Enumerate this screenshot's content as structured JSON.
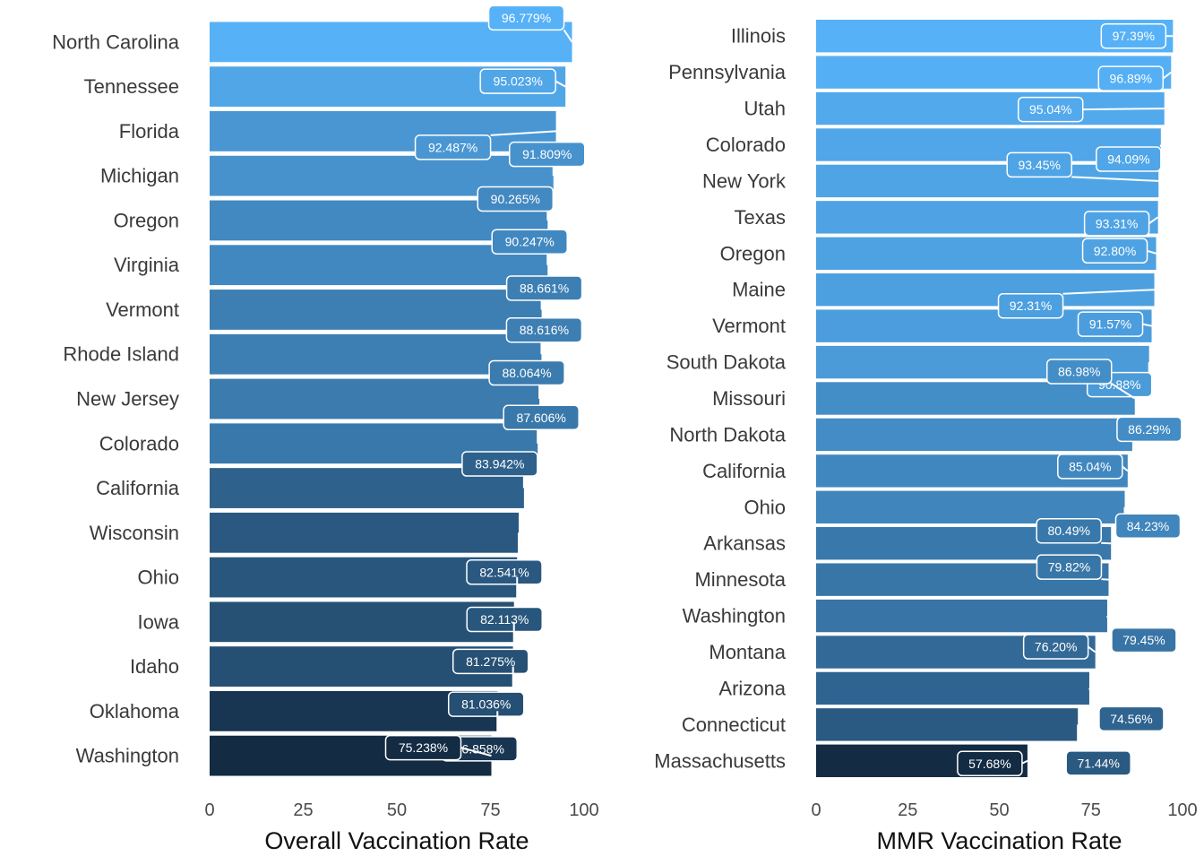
{
  "colors": {
    "low": "#132b43",
    "high": "#56b1f7",
    "label_border": "#ffffff",
    "background": "#ffffff"
  },
  "chart_data": [
    {
      "type": "bar",
      "orientation": "horizontal",
      "xlabel": "Overall Vaccination Rate",
      "xlim": [
        0,
        100
      ],
      "xticks": [
        0,
        25,
        50,
        75,
        100
      ],
      "grid": false,
      "categories": [
        "North Carolina",
        "Tennessee",
        "Florida",
        "Michigan",
        "Oregon",
        "Virginia",
        "Vermont",
        "Rhode Island",
        "New Jersey",
        "Colorado",
        "California",
        "Wisconsin",
        "Ohio",
        "Iowa",
        "Idaho",
        "Oklahoma",
        "Washington"
      ],
      "values": [
        96.779,
        95.023,
        92.487,
        91.809,
        90.265,
        90.247,
        88.661,
        88.616,
        88.064,
        87.606,
        83.942,
        82.541,
        82.113,
        81.275,
        81.036,
        76.858,
        75.238
      ],
      "data_labels": [
        "96.779%",
        "95.023%",
        "92.487%",
        "91.809%",
        "90.265%",
        "90.247%",
        "88.661%",
        "88.616%",
        "88.064%",
        "87.606%",
        "83.942%",
        "82.541%",
        "82.113%",
        "81.275%",
        "81.036%",
        "76.858%",
        "75.238%"
      ]
    },
    {
      "type": "bar",
      "orientation": "horizontal",
      "xlabel": "MMR Vaccination Rate",
      "xlim": [
        0,
        100
      ],
      "xticks": [
        0,
        25,
        50,
        75,
        100
      ],
      "grid": false,
      "categories": [
        "Illinois",
        "Pennsylvania",
        "Utah",
        "Colorado",
        "New York",
        "Texas",
        "Oregon",
        "Maine",
        "Vermont",
        "South Dakota",
        "Missouri",
        "North Dakota",
        "California",
        "Ohio",
        "Arkansas",
        "Minnesota",
        "Washington",
        "Montana",
        "Arizona",
        "Connecticut",
        "Massachusetts"
      ],
      "values": [
        97.39,
        96.89,
        95.04,
        94.09,
        93.45,
        93.31,
        92.8,
        92.31,
        91.57,
        90.88,
        86.98,
        86.29,
        85.04,
        84.23,
        80.49,
        79.82,
        79.45,
        76.2,
        74.56,
        71.44,
        57.68
      ],
      "data_labels": [
        "97.39%",
        "96.89%",
        "95.04%",
        "94.09%",
        "93.45%",
        "93.31%",
        "92.80%",
        "92.31%",
        "91.57%",
        "90.88%",
        "86.98%",
        "86.29%",
        "85.04%",
        "84.23%",
        "80.49%",
        "79.82%",
        "79.45%",
        "76.20%",
        "74.56%",
        "71.44%",
        "57.68%"
      ]
    }
  ]
}
